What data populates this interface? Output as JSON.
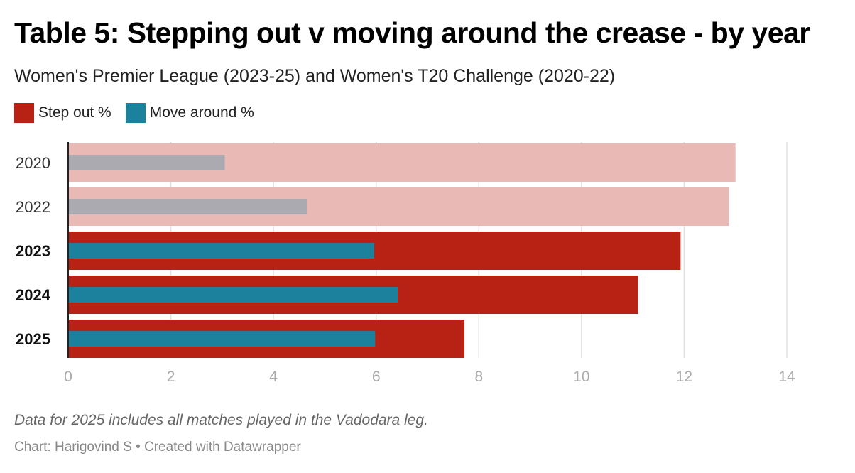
{
  "chart_data": {
    "type": "bar",
    "orientation": "horizontal",
    "title": "Table 5: Stepping out v moving around the crease - by year",
    "subtitle": "Women's Premier League (2023-25) and Women's T20 Challenge (2020-22)",
    "categories": [
      "2020",
      "2022",
      "2023",
      "2024",
      "2025"
    ],
    "bold_categories": [
      "2023",
      "2024",
      "2025"
    ],
    "series": [
      {
        "name": "Step out %",
        "values": [
          13.0,
          12.87,
          11.93,
          11.1,
          7.72
        ],
        "color": "#b72214",
        "muted_color": "#e9bab5"
      },
      {
        "name": "Move around %",
        "values": [
          3.05,
          4.65,
          5.96,
          6.42,
          5.98
        ],
        "color": "#1b819c",
        "muted_color": "#abaab1"
      }
    ],
    "muted_categories": [
      "2020",
      "2022"
    ],
    "xlim": [
      0,
      14
    ],
    "xticks": [
      0,
      2,
      4,
      6,
      8,
      10,
      12,
      14
    ],
    "grid": true,
    "legend_position": "top-left",
    "note": "Data for 2025 includes all matches played in the Vadodara leg.",
    "credit": "Chart: Harigovind S • Created with Datawrapper"
  }
}
